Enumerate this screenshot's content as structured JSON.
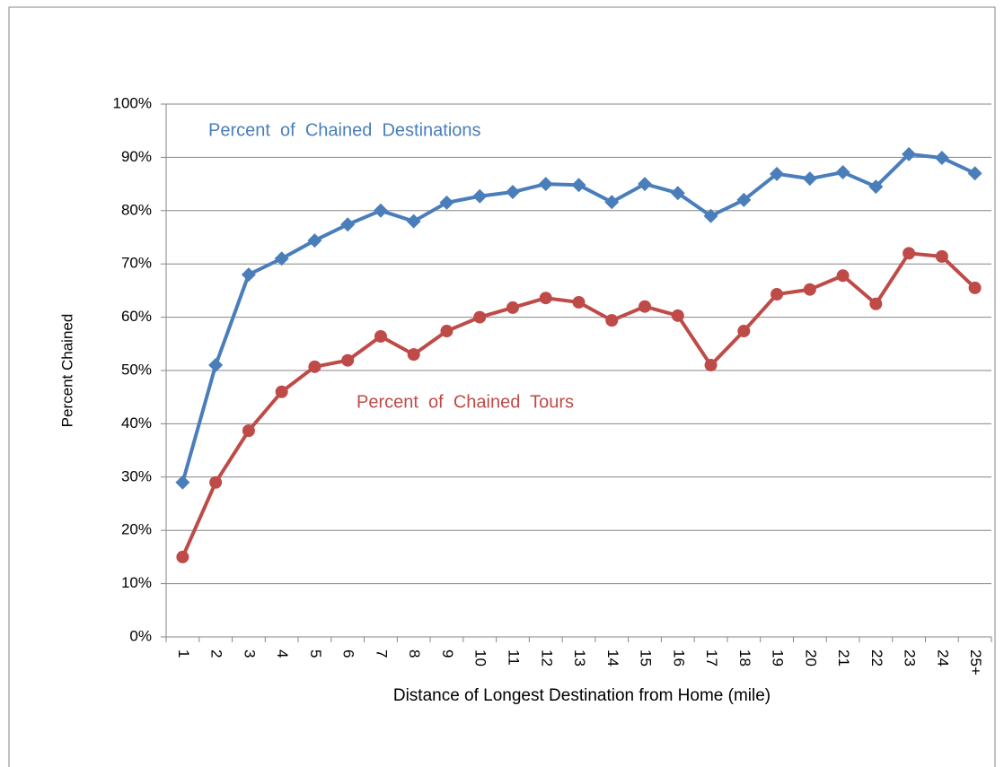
{
  "chart_data": {
    "type": "line",
    "x_label": "Distance of Longest Destination from Home (mile)",
    "y_label": "Percent  Chained",
    "categories": [
      "1",
      "2",
      "3",
      "4",
      "5",
      "6",
      "7",
      "8",
      "9",
      "10",
      "11",
      "12",
      "13",
      "14",
      "15",
      "16",
      "17",
      "18",
      "19",
      "20",
      "21",
      "22",
      "23",
      "24",
      "25+"
    ],
    "series": [
      {
        "name": "Percent  of  Chained  Destinations",
        "color": "#4a7ebb",
        "marker": "diamond",
        "values": [
          29,
          51,
          68,
          71,
          74.4,
          77.4,
          80,
          78,
          81.5,
          82.7,
          83.5,
          85,
          84.8,
          81.6,
          85,
          83.3,
          79,
          82,
          86.9,
          86,
          87.2,
          84.5,
          90.6,
          89.9,
          87
        ]
      },
      {
        "name": "Percent  of  Chained  Tours",
        "color": "#be4b48",
        "marker": "circle",
        "values": [
          15,
          29,
          38.7,
          46,
          50.7,
          51.9,
          56.4,
          53,
          57.4,
          60,
          61.8,
          63.6,
          62.8,
          59.4,
          62,
          60.3,
          51,
          57.4,
          64.3,
          65.2,
          67.8,
          62.5,
          72,
          71.4,
          65.5
        ]
      }
    ],
    "ylim": [
      0,
      100
    ],
    "yticks": [
      {
        "value": 0,
        "label": "0%"
      },
      {
        "value": 10,
        "label": "10%"
      },
      {
        "value": 20,
        "label": "20%"
      },
      {
        "value": 30,
        "label": "30%"
      },
      {
        "value": 40,
        "label": "40%"
      },
      {
        "value": 50,
        "label": "50%"
      },
      {
        "value": 60,
        "label": "60%"
      },
      {
        "value": 70,
        "label": "70%"
      },
      {
        "value": 80,
        "label": "80%"
      },
      {
        "value": 90,
        "label": "90%"
      },
      {
        "value": 100,
        "label": "100%"
      }
    ],
    "grid": true
  }
}
